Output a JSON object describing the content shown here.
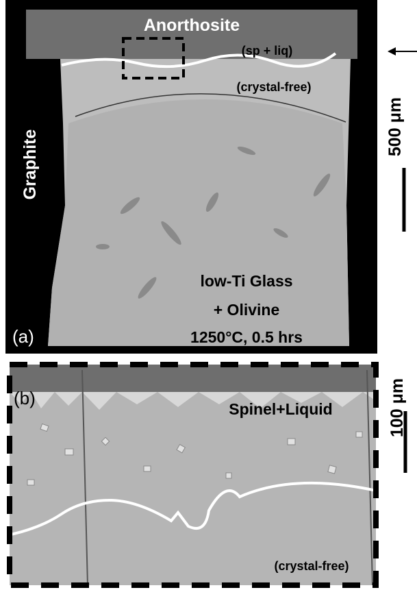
{
  "panel_a": {
    "label": "(a)",
    "anorthosite": "Anorthosite",
    "sp_liq": "(sp + liq)",
    "crystal_free": "(crystal-free)",
    "graphite": "Graphite",
    "scale": "500 μm",
    "caption": [
      "low-Ti Glass",
      "+ Olivine",
      "1250°C, 0.5 hrs"
    ]
  },
  "panel_b": {
    "label": "(b)",
    "spinel_liquid": "Spinel+Liquid",
    "crystal_free": "(crystal-free)",
    "scale": "100 μm"
  }
}
